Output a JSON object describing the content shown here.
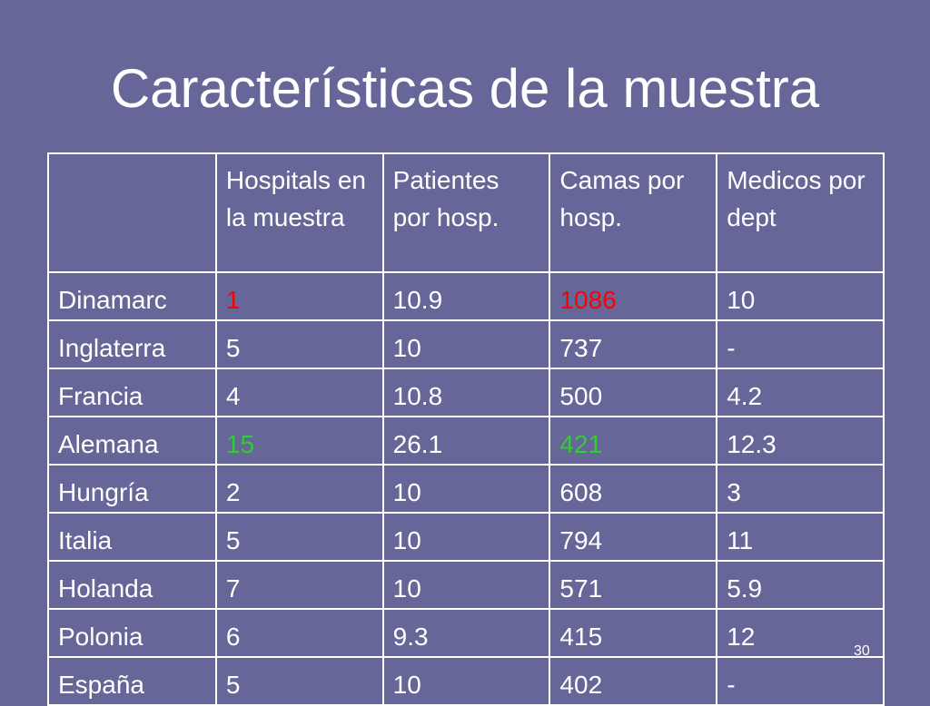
{
  "slide": {
    "title": "Características de la muestra",
    "page_number": "30"
  },
  "colors": {
    "background": "#666699",
    "text": "#ffffff",
    "highlight_red": "#ff0000",
    "highlight_green": "#33cc33"
  },
  "table": {
    "headers": [
      "",
      "Hospitals en la muestra",
      "Patientes por hosp.",
      "Camas por hosp.",
      "Medicos por dept"
    ],
    "rows": [
      {
        "cells": [
          {
            "text": "Dinamarc"
          },
          {
            "text": "1",
            "bold": true,
            "color": "#ff0000"
          },
          {
            "text": "10.9"
          },
          {
            "text": "1086",
            "bold": true,
            "color": "#ff0000"
          },
          {
            "text": "10"
          }
        ]
      },
      {
        "cells": [
          {
            "text": "Inglaterra"
          },
          {
            "text": "5"
          },
          {
            "text": "10"
          },
          {
            "text": "737",
            "bold": true
          },
          {
            "text": "-"
          }
        ]
      },
      {
        "cells": [
          {
            "text": "Francia"
          },
          {
            "text": "4"
          },
          {
            "text": "10.8"
          },
          {
            "text": "500"
          },
          {
            "text": "4.2"
          }
        ]
      },
      {
        "cells": [
          {
            "text": "Alemana"
          },
          {
            "text": "15",
            "bold": true,
            "color": "#33cc33"
          },
          {
            "text": "26.1",
            "bold": true
          },
          {
            "text": "421",
            "color": "#33cc33"
          },
          {
            "text": "12.3"
          }
        ]
      },
      {
        "cells": [
          {
            "text": "Hungría"
          },
          {
            "text": "2"
          },
          {
            "text": "10"
          },
          {
            "text": "608"
          },
          {
            "text": "3"
          }
        ]
      },
      {
        "cells": [
          {
            "text": "Italia"
          },
          {
            "text": "5"
          },
          {
            "text": "10"
          },
          {
            "text": "794",
            "bold": true
          },
          {
            "text": "11"
          }
        ]
      },
      {
        "cells": [
          {
            "text": "Holanda"
          },
          {
            "text": "7"
          },
          {
            "text": "10"
          },
          {
            "text": "571"
          },
          {
            "text": "5.9"
          }
        ]
      },
      {
        "cells": [
          {
            "text": "Polonia"
          },
          {
            "text": "6"
          },
          {
            "text": "9.3"
          },
          {
            "text": "415"
          },
          {
            "text": "12"
          }
        ]
      },
      {
        "cells": [
          {
            "text": "España"
          },
          {
            "text": "5"
          },
          {
            "text": "10"
          },
          {
            "text": "402"
          },
          {
            "text": "-"
          }
        ]
      }
    ]
  }
}
